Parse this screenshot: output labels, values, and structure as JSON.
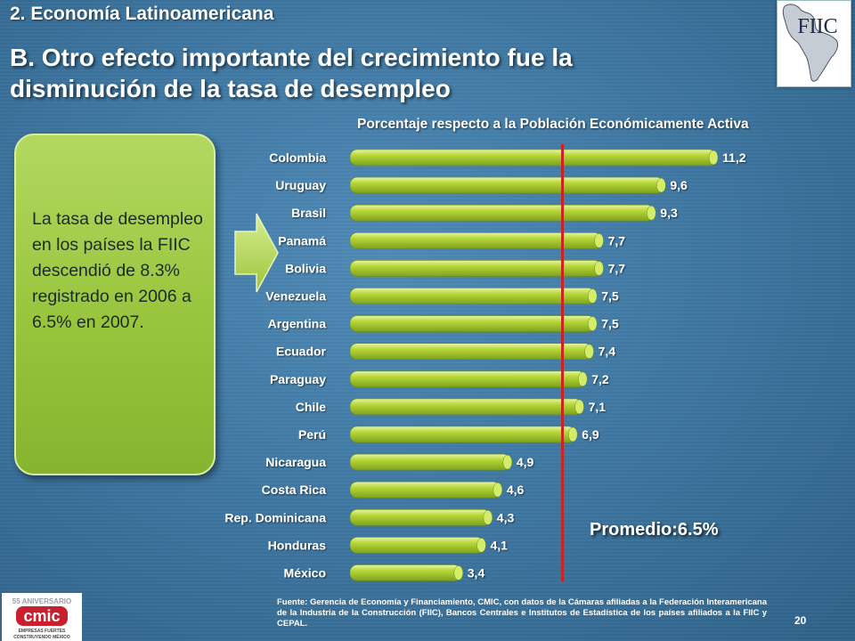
{
  "header": {
    "section": "2. Economía Latinoamericana",
    "title_line1": "B. Otro efecto importante del crecimiento fue la",
    "title_line2": "disminución de la tasa de desempleo"
  },
  "logo": {
    "text": "FIIC"
  },
  "callout": {
    "text": "La tasa de desempleo en los  países la FIIC descendió de 8.3% registrado en 2006  a 6.5% en 2007."
  },
  "chart_data": {
    "type": "bar",
    "orientation": "horizontal",
    "title": "Porcentaje respecto a la Población Económicamente Activa",
    "categories": [
      "Colombia",
      "Uruguay",
      "Brasil",
      "Panamá",
      "Bolivia",
      "Venezuela",
      "Argentina",
      "Ecuador",
      "Paraguay",
      "Chile",
      "Perú",
      "Nicaragua",
      "Costa Rica",
      "Rep. Dominicana",
      "Honduras",
      "México"
    ],
    "values": [
      11.2,
      9.6,
      9.3,
      7.7,
      7.7,
      7.5,
      7.5,
      7.4,
      7.2,
      7.1,
      6.9,
      4.9,
      4.6,
      4.3,
      4.1,
      3.4
    ],
    "value_labels": [
      "11,2",
      "9,6",
      "9,3",
      "7,7",
      "7,7",
      "7,5",
      "7,5",
      "7,4",
      "7,2",
      "7,1",
      "6,9",
      "4,9",
      "4,6",
      "4,3",
      "4,1",
      "3,4"
    ],
    "xlim": [
      0,
      12
    ],
    "reference_line": {
      "value": 6.5,
      "label": "Promedio:6.5%",
      "color": "#cc2222"
    },
    "bar_color": "#a8cc2a"
  },
  "footer": {
    "source": "Fuente: Gerencia de Economía y Financiamiento, CMIC, con datos de la Cámaras afiliadas a la Federación Interamericana de la Industria de la Construcción (FIIC), Bancos Centrales e Institutos de Estadística de los países afiliados a la FIIC y CEPAL.",
    "page_number": "20"
  },
  "cmic_logo": {
    "anniversary": "55 ANIVERSARIO",
    "name": "cmic",
    "tagline1": "EMPRESAS FUERTES",
    "tagline2": "CONSTRUYENDO MÉXICO"
  }
}
